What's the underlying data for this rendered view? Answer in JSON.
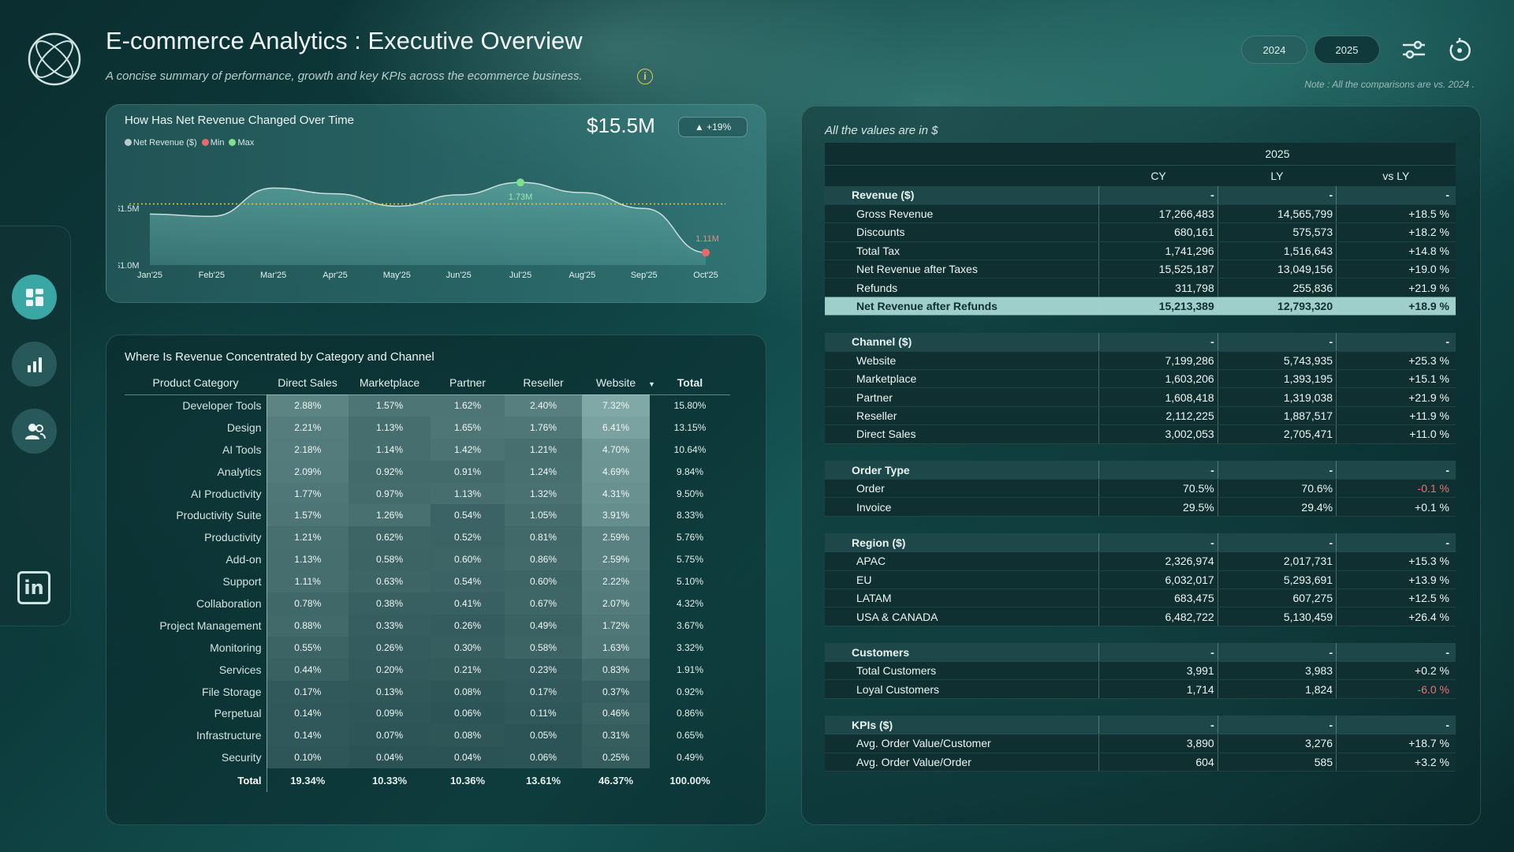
{
  "header": {
    "title": "E-commerce Analytics : Executive Overview",
    "subtitle": "A concise summary of performance, growth and key KPIs across the ecommerce business.",
    "info_glyph": "i",
    "year_buttons": [
      "2024",
      "2025"
    ],
    "selected_year": "2025",
    "note": "Note : All the comparisons are vs. 2024 ."
  },
  "nav": {
    "items": [
      "dashboard-icon",
      "bar-chart-icon",
      "users-icon"
    ],
    "active": "dashboard-icon",
    "linkedin_glyph": "in"
  },
  "revenue_chart": {
    "title": "How Has Net Revenue Changed Over Time",
    "kpi": "$15.5M",
    "badge": "▲ +19%",
    "legend": [
      {
        "label": "Net Revenue ($)",
        "color": "#b8cbc9"
      },
      {
        "label": "Min",
        "color": "#e86a6a"
      },
      {
        "label": "Max",
        "color": "#7fe08a"
      }
    ]
  },
  "chart_data": {
    "type": "area",
    "categories": [
      "Jan'25",
      "Feb'25",
      "Mar'25",
      "Apr'25",
      "May'25",
      "Jun'25",
      "Jul'25",
      "Aug'25",
      "Sep'25",
      "Oct'25"
    ],
    "series": [
      {
        "name": "Net Revenue ($)",
        "values": [
          1.45,
          1.43,
          1.68,
          1.63,
          1.52,
          1.62,
          1.73,
          1.64,
          1.5,
          1.11
        ]
      }
    ],
    "y_ticks": [
      "$1.0M",
      "$1.5M"
    ],
    "ylim": [
      1.0,
      1.85
    ],
    "average_line": 1.54,
    "min_label": "1.11M",
    "max_label": "1.73M",
    "colors": {
      "line": "#c9e0dd",
      "area": "#5fa9a4",
      "min": "#e86a6a",
      "max": "#7fe08a",
      "avg": "#e7c552"
    }
  },
  "matrix": {
    "title": "Where Is Revenue Concentrated by Category and Channel",
    "columns": [
      "Product Category",
      "Direct Sales",
      "Marketplace",
      "Partner",
      "Reseller",
      "Website",
      "Total"
    ],
    "sort_glyph": "▼",
    "rows": [
      {
        "cat": "Developer Tools",
        "v": [
          "2.88%",
          "1.57%",
          "1.62%",
          "2.40%",
          "7.32%"
        ],
        "total": "15.80%"
      },
      {
        "cat": "Design",
        "v": [
          "2.21%",
          "1.13%",
          "1.65%",
          "1.76%",
          "6.41%"
        ],
        "total": "13.15%"
      },
      {
        "cat": "AI Tools",
        "v": [
          "2.18%",
          "1.14%",
          "1.42%",
          "1.21%",
          "4.70%"
        ],
        "total": "10.64%"
      },
      {
        "cat": "Analytics",
        "v": [
          "2.09%",
          "0.92%",
          "0.91%",
          "1.24%",
          "4.69%"
        ],
        "total": "9.84%"
      },
      {
        "cat": "AI Productivity",
        "v": [
          "1.77%",
          "0.97%",
          "1.13%",
          "1.32%",
          "4.31%"
        ],
        "total": "9.50%"
      },
      {
        "cat": "Productivity Suite",
        "v": [
          "1.57%",
          "1.26%",
          "0.54%",
          "1.05%",
          "3.91%"
        ],
        "total": "8.33%"
      },
      {
        "cat": "Productivity",
        "v": [
          "1.21%",
          "0.62%",
          "0.52%",
          "0.81%",
          "2.59%"
        ],
        "total": "5.76%"
      },
      {
        "cat": "Add-on",
        "v": [
          "1.13%",
          "0.58%",
          "0.60%",
          "0.86%",
          "2.59%"
        ],
        "total": "5.75%"
      },
      {
        "cat": "Support",
        "v": [
          "1.11%",
          "0.63%",
          "0.54%",
          "0.60%",
          "2.22%"
        ],
        "total": "5.10%"
      },
      {
        "cat": "Collaboration",
        "v": [
          "0.78%",
          "0.38%",
          "0.41%",
          "0.67%",
          "2.07%"
        ],
        "total": "4.32%"
      },
      {
        "cat": "Project Management",
        "v": [
          "0.88%",
          "0.33%",
          "0.26%",
          "0.49%",
          "1.72%"
        ],
        "total": "3.67%"
      },
      {
        "cat": "Monitoring",
        "v": [
          "0.55%",
          "0.26%",
          "0.30%",
          "0.58%",
          "1.63%"
        ],
        "total": "3.32%"
      },
      {
        "cat": "Services",
        "v": [
          "0.44%",
          "0.20%",
          "0.21%",
          "0.23%",
          "0.83%"
        ],
        "total": "1.91%"
      },
      {
        "cat": "File Storage",
        "v": [
          "0.17%",
          "0.13%",
          "0.08%",
          "0.17%",
          "0.37%"
        ],
        "total": "0.92%"
      },
      {
        "cat": "Perpetual",
        "v": [
          "0.14%",
          "0.09%",
          "0.06%",
          "0.11%",
          "0.46%"
        ],
        "total": "0.86%"
      },
      {
        "cat": "Infrastructure",
        "v": [
          "0.14%",
          "0.07%",
          "0.08%",
          "0.05%",
          "0.31%"
        ],
        "total": "0.65%"
      },
      {
        "cat": "Security",
        "v": [
          "0.10%",
          "0.04%",
          "0.04%",
          "0.06%",
          "0.25%"
        ],
        "total": "0.49%"
      }
    ],
    "total_row": {
      "cat": "Total",
      "v": [
        "19.34%",
        "10.33%",
        "10.36%",
        "13.61%",
        "46.37%"
      ],
      "total": "100.00%"
    }
  },
  "financials": {
    "caption": "All the values are in $",
    "year": "2025",
    "headers": [
      "CY",
      "LY",
      "vs LY"
    ],
    "sections": [
      {
        "title": "Revenue ($)",
        "rows": [
          {
            "label": "Gross Revenue",
            "cy": "17,266,483",
            "ly": "14,565,799",
            "vs": "+18.5 %"
          },
          {
            "label": "Discounts",
            "cy": "680,161",
            "ly": "575,573",
            "vs": "+18.2 %"
          },
          {
            "label": "Total Tax",
            "cy": "1,741,296",
            "ly": "1,516,643",
            "vs": "+14.8 %"
          },
          {
            "label": "Net Revenue after Taxes",
            "cy": "15,525,187",
            "ly": "13,049,156",
            "vs": "+19.0 %"
          },
          {
            "label": "Refunds",
            "cy": "311,798",
            "ly": "255,836",
            "vs": "+21.9 %"
          },
          {
            "label": "Net Revenue after Refunds",
            "cy": "15,213,389",
            "ly": "12,793,320",
            "vs": "+18.9 %",
            "highlight": true
          }
        ]
      },
      {
        "title": "Channel ($)",
        "rows": [
          {
            "label": "Website",
            "cy": "7,199,286",
            "ly": "5,743,935",
            "vs": "+25.3 %"
          },
          {
            "label": "Marketplace",
            "cy": "1,603,206",
            "ly": "1,393,195",
            "vs": "+15.1 %"
          },
          {
            "label": "Partner",
            "cy": "1,608,418",
            "ly": "1,319,038",
            "vs": "+21.9 %"
          },
          {
            "label": "Reseller",
            "cy": "2,112,225",
            "ly": "1,887,517",
            "vs": "+11.9 %"
          },
          {
            "label": "Direct Sales",
            "cy": "3,002,053",
            "ly": "2,705,471",
            "vs": "+11.0 %"
          }
        ]
      },
      {
        "title": "Order Type",
        "rows": [
          {
            "label": "Order",
            "cy": "70.5%",
            "ly": "70.6%",
            "vs": "-0.1 %",
            "neg": true
          },
          {
            "label": "Invoice",
            "cy": "29.5%",
            "ly": "29.4%",
            "vs": "+0.1 %"
          }
        ]
      },
      {
        "title": "Region ($)",
        "rows": [
          {
            "label": "APAC",
            "cy": "2,326,974",
            "ly": "2,017,731",
            "vs": "+15.3 %"
          },
          {
            "label": "EU",
            "cy": "6,032,017",
            "ly": "5,293,691",
            "vs": "+13.9 %"
          },
          {
            "label": "LATAM",
            "cy": "683,475",
            "ly": "607,275",
            "vs": "+12.5 %"
          },
          {
            "label": "USA & CANADA",
            "cy": "6,482,722",
            "ly": "5,130,459",
            "vs": "+26.4 %"
          }
        ]
      },
      {
        "title": "Customers",
        "rows": [
          {
            "label": "Total Customers",
            "cy": "3,991",
            "ly": "3,983",
            "vs": "+0.2 %"
          },
          {
            "label": "Loyal Customers",
            "cy": "1,714",
            "ly": "1,824",
            "vs": "-6.0 %",
            "neg": true
          }
        ]
      },
      {
        "title": "KPIs ($)",
        "rows": [
          {
            "label": "Avg. Order Value/Customer",
            "cy": "3,890",
            "ly": "3,276",
            "vs": "+18.7 %"
          },
          {
            "label": "Avg. Order Value/Order",
            "cy": "604",
            "ly": "585",
            "vs": "+3.2 %"
          }
        ]
      }
    ],
    "section_placeholder": "-"
  }
}
